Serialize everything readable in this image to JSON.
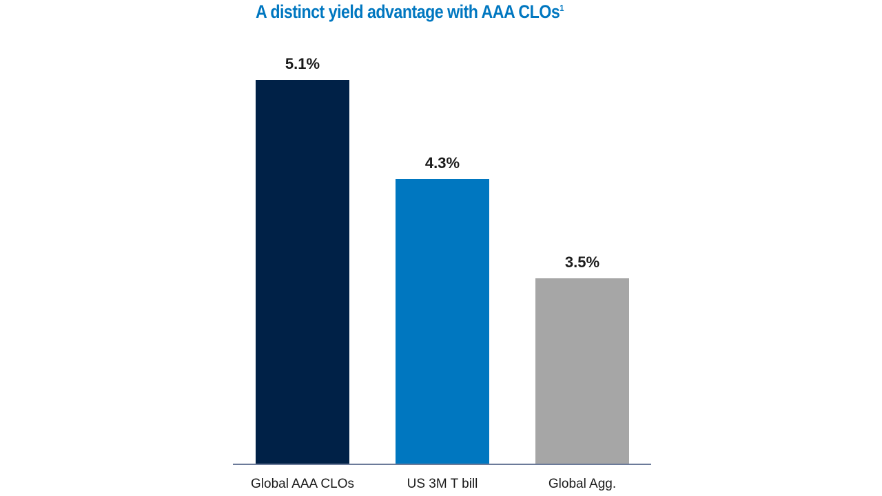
{
  "chart_data": {
    "type": "bar",
    "title": "A distinct yield advantage with AAA CLOs",
    "title_footnote": "1",
    "categories": [
      "Global AAA CLOs",
      "US 3M T bill",
      "Global Agg."
    ],
    "values": [
      5.1,
      4.3,
      3.5
    ],
    "value_labels": [
      "5.1%",
      "4.3%",
      "3.5%"
    ],
    "colors": [
      "#002147",
      "#0077c0",
      "#a6a6a6"
    ],
    "xlabel": "",
    "ylabel": "",
    "ylim": [
      2.0,
      5.3
    ],
    "grid": false,
    "legend": "none"
  }
}
